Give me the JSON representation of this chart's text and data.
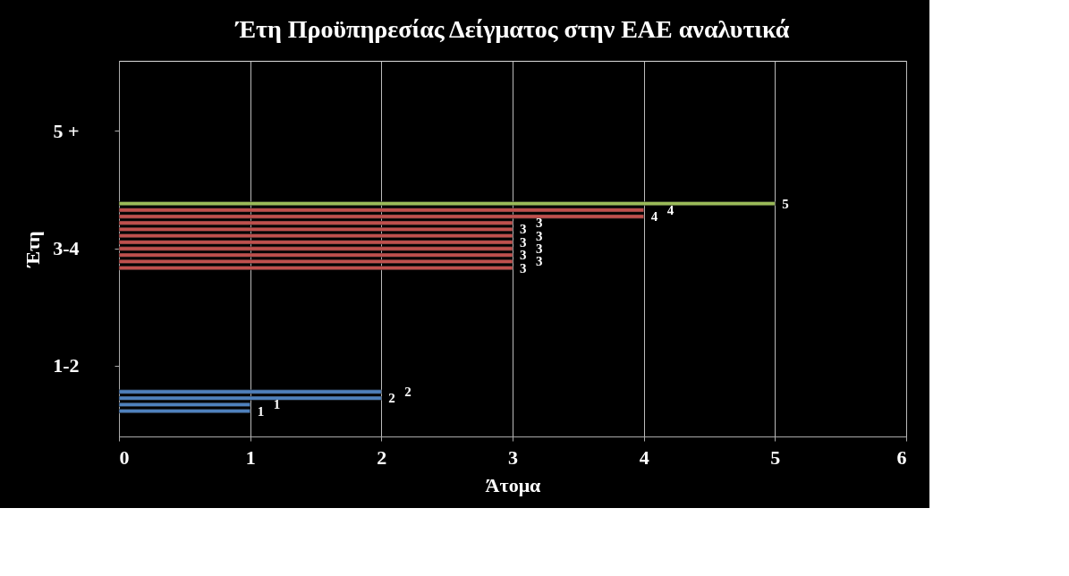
{
  "chart_data": {
    "type": "bar",
    "orientation": "horizontal",
    "title": "Έτη Προϋπηρεσίας Δείγματος στην ΕΑΕ αναλυτικά",
    "xlabel": "Άτομα",
    "ylabel": "Έτη",
    "categories": [
      "5 +",
      "3-4",
      "1-2"
    ],
    "series": [
      {
        "color": "#9bbb59",
        "values": [
          null,
          5,
          null
        ]
      },
      {
        "color": "#c0504d",
        "values": [
          null,
          4,
          null
        ]
      },
      {
        "color": "#c0504d",
        "values": [
          null,
          4,
          null
        ]
      },
      {
        "color": "#c0504d",
        "values": [
          null,
          3,
          null
        ]
      },
      {
        "color": "#c0504d",
        "values": [
          null,
          3,
          null
        ]
      },
      {
        "color": "#c0504d",
        "values": [
          null,
          3,
          null
        ]
      },
      {
        "color": "#c0504d",
        "values": [
          null,
          3,
          null
        ]
      },
      {
        "color": "#c0504d",
        "values": [
          null,
          3,
          null
        ]
      },
      {
        "color": "#c0504d",
        "values": [
          null,
          3,
          null
        ]
      },
      {
        "color": "#c0504d",
        "values": [
          null,
          3,
          null
        ]
      },
      {
        "color": "#c0504d",
        "values": [
          null,
          3,
          null
        ]
      },
      {
        "color": "#4f81bd",
        "values": [
          null,
          null,
          2
        ]
      },
      {
        "color": "#4f81bd",
        "values": [
          null,
          null,
          2
        ]
      },
      {
        "color": "#4f81bd",
        "values": [
          null,
          null,
          1
        ]
      },
      {
        "color": "#4f81bd",
        "values": [
          null,
          null,
          1
        ]
      }
    ],
    "xlim": [
      0,
      6
    ],
    "xticks": [
      0,
      1,
      2,
      3,
      4,
      5,
      6
    ],
    "grid": "x",
    "legend": false,
    "data_labels": true
  }
}
